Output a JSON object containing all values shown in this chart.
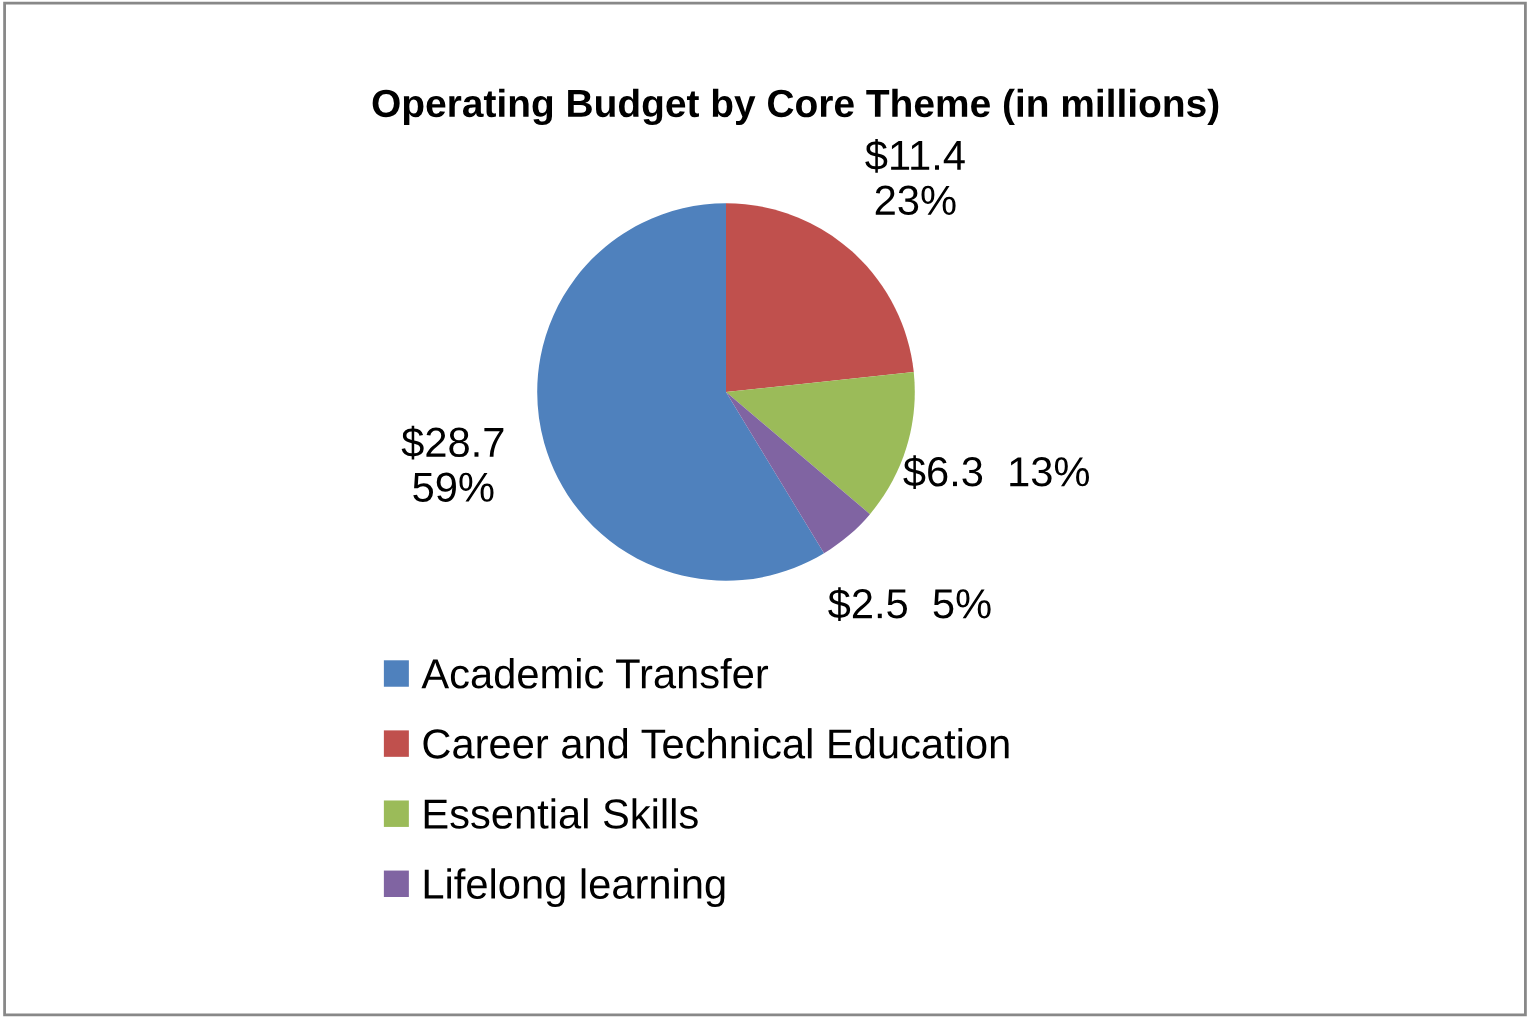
{
  "chart_data": {
    "type": "pie",
    "title": "Operating Budget by Core Theme (in millions)",
    "categories": [
      "Academic Transfer",
      "Career and Technical Education",
      "Essential Skills",
      "Lifelong learning"
    ],
    "values": [
      28.7,
      11.4,
      6.3,
      2.5
    ],
    "colors": [
      "#4f81bd",
      "#c0504d",
      "#9bbb59",
      "#8064a2"
    ],
    "value_labels": [
      "$28.7\n59%",
      "$11.4\n23%",
      "$6.3  13%",
      "$2.5  5%"
    ],
    "legend": "bottom"
  }
}
